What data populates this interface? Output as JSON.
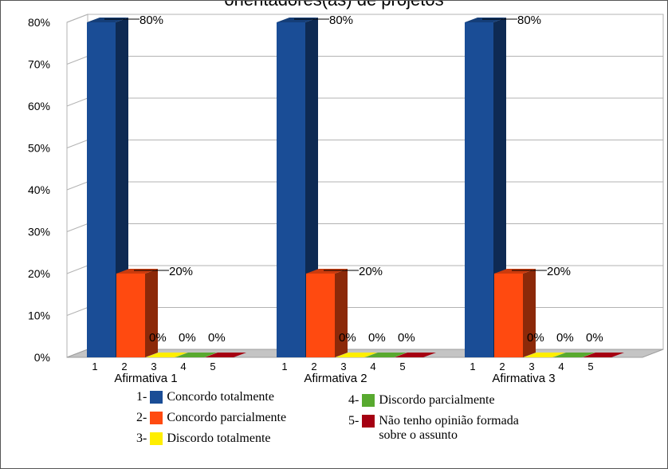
{
  "chart_data": {
    "type": "bar",
    "title": "orientadores(as) de projetos",
    "groups": [
      "Afirmativa 1",
      "Afirmativa 2",
      "Afirmativa 3"
    ],
    "categories": [
      "1",
      "2",
      "3",
      "4",
      "5"
    ],
    "series": [
      {
        "name": "Afirmativa 1",
        "values": [
          80,
          20,
          0,
          0,
          0
        ]
      },
      {
        "name": "Afirmativa 2",
        "values": [
          80,
          20,
          0,
          0,
          0
        ]
      },
      {
        "name": "Afirmativa 3",
        "values": [
          80,
          20,
          0,
          0,
          0
        ]
      }
    ],
    "data_labels": [
      "80%",
      "20%",
      "0%",
      "0%",
      "0%"
    ],
    "ylim": [
      0,
      80
    ],
    "yticks": [
      "0%",
      "10%",
      "20%",
      "30%",
      "40%",
      "50%",
      "60%",
      "70%",
      "80%"
    ],
    "grid": true,
    "three_d": true,
    "legend_position": "bottom",
    "category_colors": [
      "#1a4d96",
      "#ff4a10",
      "#ffee00",
      "#58a92f",
      "#a50012"
    ],
    "legend": [
      {
        "number": "1-",
        "label": "Concordo totalmente"
      },
      {
        "number": "2-",
        "label": "Concordo parcialmente"
      },
      {
        "number": "3-",
        "label": "Discordo totalmente"
      },
      {
        "number": "4-",
        "label": "Discordo parcialmente"
      },
      {
        "number": "5-",
        "label": "Não tenho opinião formada sobre o assunto"
      }
    ]
  }
}
